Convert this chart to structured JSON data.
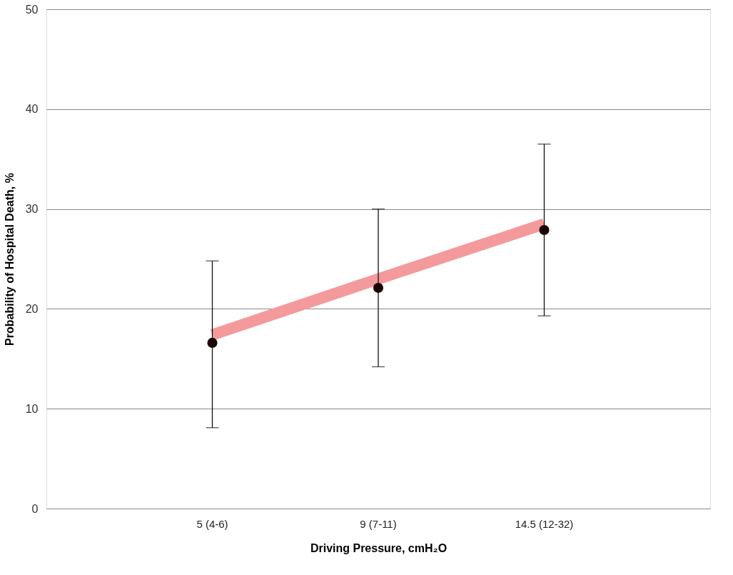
{
  "chart_data": {
    "type": "scatter",
    "xlabel": "Driving Pressure, cmH₂O",
    "ylabel": "Probability of Hospital Death, %",
    "categories": [
      "5 (4-6)",
      "9 (7-11)",
      "14.5 (12-32)"
    ],
    "ylim": [
      0,
      50
    ],
    "yticks": [
      0,
      10,
      20,
      30,
      40,
      50
    ],
    "grid": "y",
    "series": [
      {
        "type": "line",
        "marker": "none",
        "color": "#f49a9a",
        "values": [
          17.4,
          23.0,
          28.5
        ]
      },
      {
        "marker": "circle",
        "color": "#1a0505",
        "values": [
          16.6,
          22.1,
          27.9
        ],
        "errors": [
          [
            8.1,
            24.8
          ],
          [
            14.2,
            30.0
          ],
          [
            19.3,
            36.5
          ]
        ]
      }
    ]
  }
}
